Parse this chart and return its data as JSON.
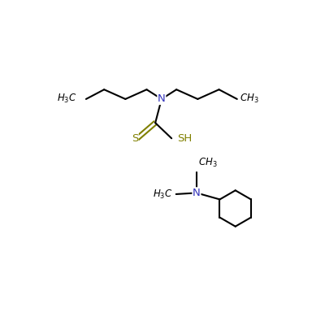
{
  "background_color": "#ffffff",
  "bond_color": "#000000",
  "N_color": "#3333bb",
  "S_color": "#808000",
  "line_width": 1.5,
  "figsize": [
    4.0,
    4.0
  ],
  "dpi": 100,
  "xlim": [
    0,
    10
  ],
  "ylim": [
    0,
    10
  ]
}
